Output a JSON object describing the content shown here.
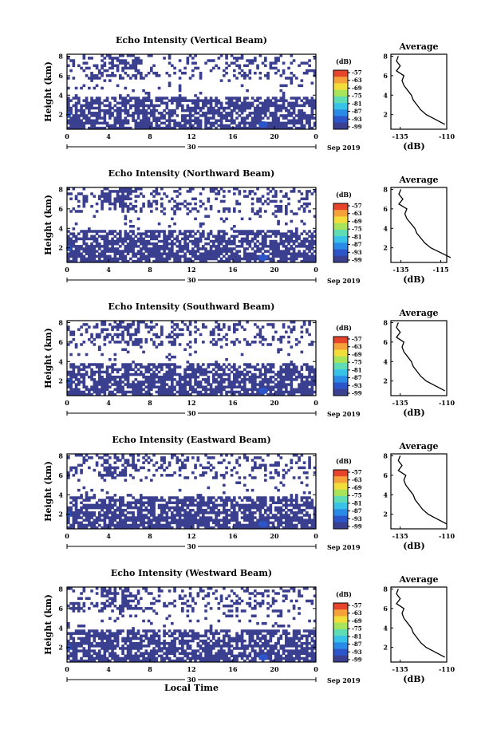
{
  "figure": {
    "common_xlabel": "Local Time",
    "day_label": "30",
    "date_label": "Sep 2019"
  },
  "chart_data": [
    {
      "type": "heatmap",
      "title": "Echo Intensity (Vertical Beam)",
      "ylabel": "Height (km)",
      "x_ticks": [
        "0",
        "4",
        "8",
        "12",
        "16",
        "20",
        "0"
      ],
      "y_ticks": [
        "2",
        "4",
        "6",
        "8"
      ],
      "xlim": [
        0,
        24
      ],
      "ylim": [
        0.5,
        8.2
      ],
      "colorbar": {
        "label": "(dB)",
        "ticks": [
          "-57",
          "-63",
          "-69",
          "-75",
          "-81",
          "-87",
          "-93",
          "-99"
        ]
      },
      "profile": {
        "title": "Average",
        "xlabel": "(dB)",
        "x_ticks": [
          "-135",
          "-110"
        ],
        "y_ticks": [
          "2",
          "4",
          "6",
          "8"
        ],
        "xlim": [
          -140,
          -110
        ]
      }
    },
    {
      "type": "heatmap",
      "title": "Echo Intensity (Northward Beam)",
      "ylabel": "Height (km)",
      "x_ticks": [
        "0",
        "4",
        "8",
        "12",
        "16",
        "20",
        "0"
      ],
      "y_ticks": [
        "2",
        "4",
        "6",
        "8"
      ],
      "xlim": [
        0,
        24
      ],
      "ylim": [
        0.5,
        8.2
      ],
      "colorbar": {
        "label": "(dB)",
        "ticks": [
          "-57",
          "-63",
          "-69",
          "-75",
          "-81",
          "-87",
          "-93",
          "-99"
        ]
      },
      "profile": {
        "title": "Average",
        "xlabel": "(dB)",
        "x_ticks": [
          "-135",
          "-115"
        ],
        "y_ticks": [
          "2",
          "4",
          "6",
          "8"
        ],
        "xlim": [
          -140,
          -112
        ]
      }
    },
    {
      "type": "heatmap",
      "title": "Echo Intensity (Southward Beam)",
      "ylabel": "Height (km)",
      "x_ticks": [
        "0",
        "4",
        "8",
        "12",
        "16",
        "20",
        "0"
      ],
      "y_ticks": [
        "2",
        "4",
        "6",
        "8"
      ],
      "xlim": [
        0,
        24
      ],
      "ylim": [
        0.5,
        8.2
      ],
      "colorbar": {
        "label": "(dB)",
        "ticks": [
          "-57",
          "-63",
          "-69",
          "-75",
          "-81",
          "-87",
          "-93",
          "-99"
        ]
      },
      "profile": {
        "title": "Average",
        "xlabel": "(dB)",
        "x_ticks": [
          "-135",
          "-110"
        ],
        "y_ticks": [
          "2",
          "4",
          "6",
          "8"
        ],
        "xlim": [
          -140,
          -110
        ]
      }
    },
    {
      "type": "heatmap",
      "title": "Echo Intensity (Eastward Beam)",
      "ylabel": "Height (km)",
      "x_ticks": [
        "0",
        "4",
        "8",
        "12",
        "16",
        "20",
        "0"
      ],
      "y_ticks": [
        "2",
        "4",
        "6",
        "8"
      ],
      "xlim": [
        0,
        24
      ],
      "ylim": [
        0.5,
        8.2
      ],
      "colorbar": {
        "label": "(dB)",
        "ticks": [
          "-57",
          "-63",
          "-69",
          "-75",
          "-81",
          "-87",
          "-93",
          "-99"
        ]
      },
      "profile": {
        "title": "Average",
        "xlabel": "(dB)",
        "x_ticks": [
          "-135",
          "-110"
        ],
        "y_ticks": [
          "2",
          "4",
          "6",
          "8"
        ],
        "xlim": [
          -140,
          -110
        ]
      }
    },
    {
      "type": "heatmap",
      "title": "Echo Intensity (Westward Beam)",
      "ylabel": "Height (km)",
      "x_ticks": [
        "0",
        "4",
        "8",
        "12",
        "16",
        "20",
        "0"
      ],
      "y_ticks": [
        "2",
        "4",
        "6",
        "8"
      ],
      "xlim": [
        0,
        24
      ],
      "ylim": [
        0.5,
        8.2
      ],
      "colorbar": {
        "label": "(dB)",
        "ticks": [
          "-57",
          "-63",
          "-69",
          "-75",
          "-81",
          "-87",
          "-93",
          "-99"
        ]
      },
      "profile": {
        "title": "Average",
        "xlabel": "(dB)",
        "x_ticks": [
          "-135",
          "-110"
        ],
        "y_ticks": [
          "2",
          "4",
          "6",
          "8"
        ],
        "xlim": [
          -140,
          -110
        ]
      }
    }
  ],
  "profile_series": {
    "heights_km": [
      1.0,
      1.5,
      2.0,
      2.5,
      3.0,
      3.5,
      4.0,
      4.5,
      5.0,
      5.5,
      6.0,
      6.5,
      7.0,
      7.5,
      8.0
    ],
    "values_db": [
      -111,
      -116,
      -121,
      -124,
      -126,
      -128,
      -129,
      -131,
      -133,
      -134,
      -133,
      -137,
      -135,
      -137,
      -136
    ]
  },
  "palette": [
    "#3a3f8f",
    "#2b55c8",
    "#2a8be6",
    "#38c2e8",
    "#5fdcb3",
    "#a8e45a",
    "#f3dd3a",
    "#f5a23a",
    "#e6452b"
  ],
  "data_color": "#3a3f8f"
}
